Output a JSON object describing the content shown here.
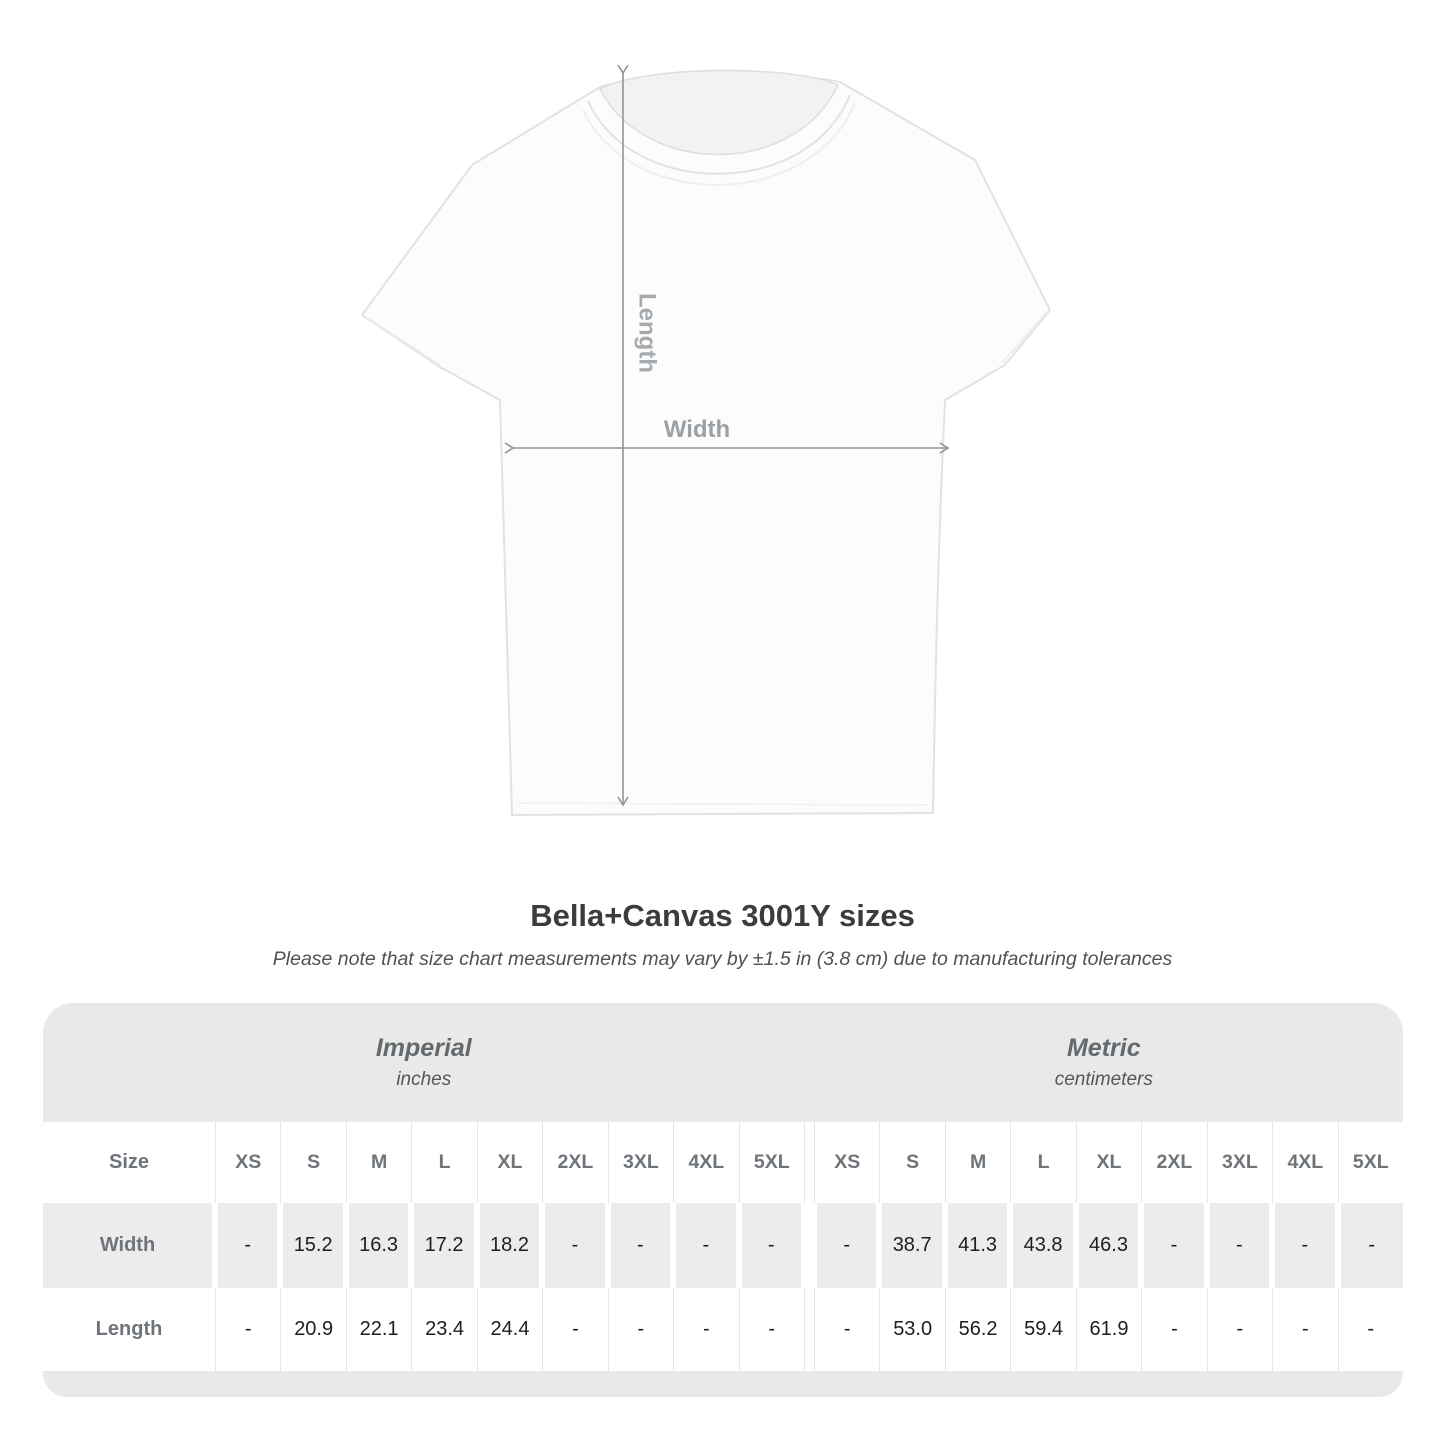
{
  "shirt_diagram": {
    "length_label": "Length",
    "width_label": "Width",
    "arrow_color": "#8f959a",
    "label_color": "#a5aaae"
  },
  "header": {
    "title": "Bella+Canvas 3001Y sizes",
    "subtitle": "Please note that size chart measurements may vary by ±1.5 in (3.8 cm) due to manufacturing tolerances"
  },
  "chart_data": {
    "type": "table",
    "title": "Bella+Canvas 3001Y sizes",
    "row_header": "Size",
    "unit_groups": [
      {
        "label": "Imperial",
        "sublabel": "inches",
        "sizes": [
          "XS",
          "S",
          "M",
          "L",
          "XL",
          "2XL",
          "3XL",
          "4XL",
          "5XL"
        ]
      },
      {
        "label": "Metric",
        "sublabel": "centimeters",
        "sizes": [
          "XS",
          "S",
          "M",
          "L",
          "XL",
          "2XL",
          "3XL",
          "4XL",
          "5XL"
        ]
      }
    ],
    "rows": [
      {
        "label": "Width",
        "imperial": [
          "-",
          "15.2",
          "16.3",
          "17.2",
          "18.2",
          "-",
          "-",
          "-",
          "-"
        ],
        "metric": [
          "-",
          "38.7",
          "41.3",
          "43.8",
          "46.3",
          "-",
          "-",
          "-",
          "-"
        ]
      },
      {
        "label": "Length",
        "imperial": [
          "-",
          "20.9",
          "22.1",
          "23.4",
          "24.4",
          "-",
          "-",
          "-",
          "-"
        ],
        "metric": [
          "-",
          "53.0",
          "56.2",
          "59.4",
          "61.9",
          "-",
          "-",
          "-",
          "-"
        ]
      }
    ]
  },
  "colors": {
    "band_gray": "#e9e9e9",
    "shaded_row_gray": "#ececec",
    "header_text_gray": "#6e7479",
    "value_text": "#1e1e1e"
  }
}
